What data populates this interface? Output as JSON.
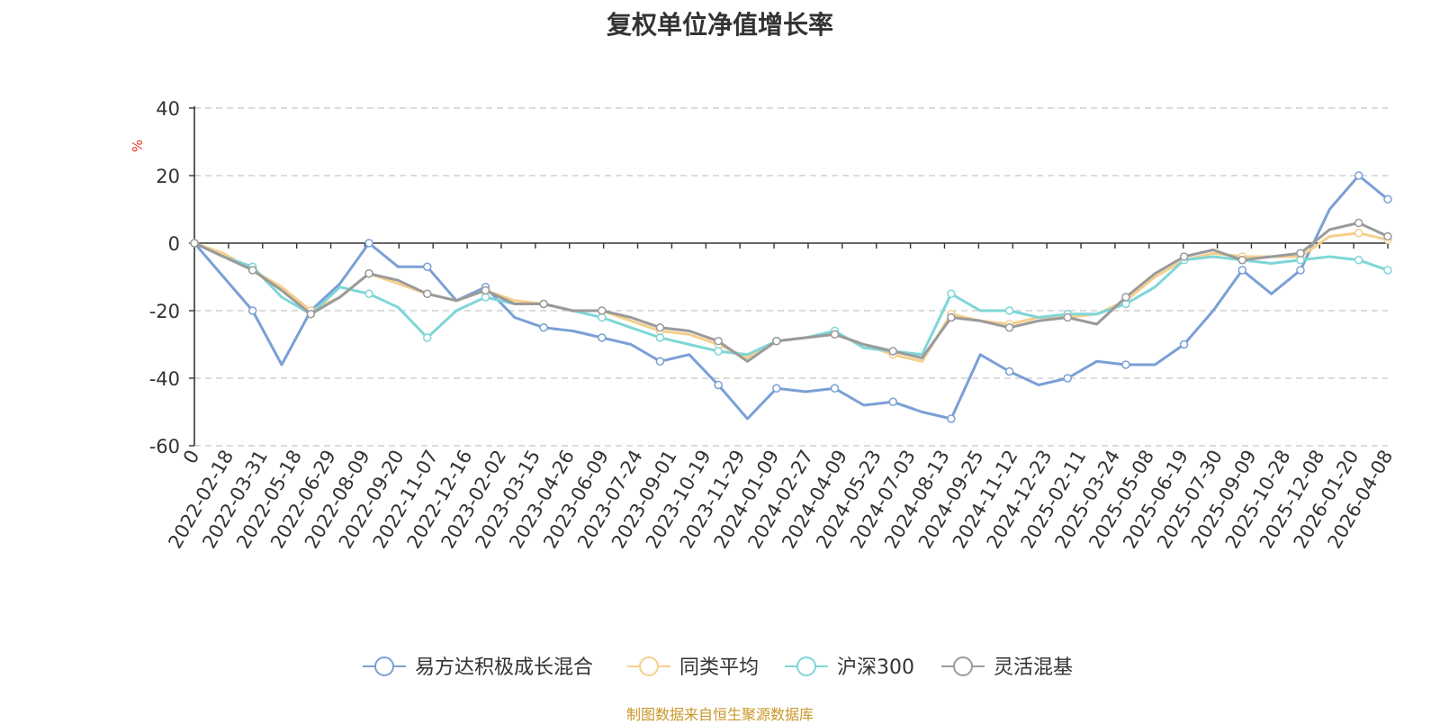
{
  "chart_data": {
    "type": "line",
    "title": "复权单位净值增长率",
    "ylabel": "%",
    "ylim": [
      -60,
      40
    ],
    "yticks": [
      40,
      20,
      0,
      -20,
      -40,
      -60
    ],
    "grid": true,
    "legend_position": "bottom",
    "x_tick_labels": [
      "0",
      "2022-02-18",
      "2022-03-31",
      "2022-05-18",
      "2022-06-29",
      "2022-08-09",
      "2022-09-20",
      "2022-11-07",
      "2022-12-16",
      "2023-02-02",
      "2023-03-15",
      "2023-04-26",
      "2023-06-09",
      "2023-07-24",
      "2023-09-01",
      "2023-10-19",
      "2023-11-29",
      "2024-01-09",
      "2024-02-27",
      "2024-04-09",
      "2024-05-23",
      "2024-07-03",
      "2024-08-13",
      "2024-09-25",
      "2024-11-12",
      "2024-12-23",
      "2025-02-11",
      "2025-03-24",
      "2025-05-08",
      "2025-06-19",
      "2025-07-30",
      "2025-09-09",
      "2025-10-28",
      "2025-12-08",
      "2026-01-20",
      "2026-04-08"
    ],
    "series": [
      {
        "name": "易方达积极成长混合",
        "color": "#7b9fd6",
        "values": [
          0,
          -10,
          -20,
          -36,
          -20,
          -12,
          0,
          -7,
          -7,
          -17,
          -13,
          -22,
          -25,
          -26,
          -28,
          -30,
          -35,
          -33,
          -42,
          -52,
          -43,
          -44,
          -43,
          -48,
          -47,
          -50,
          -52,
          -33,
          -38,
          -42,
          -40,
          -35,
          -36,
          -36,
          -30,
          -20,
          -8,
          -15,
          -8,
          10,
          20,
          13
        ]
      },
      {
        "name": "同类平均",
        "color": "#f5cf8c",
        "values": [
          0,
          -3,
          -8,
          -13,
          -20,
          -16,
          -9,
          -12,
          -15,
          -17,
          -14,
          -17,
          -18,
          -20,
          -20,
          -23,
          -26,
          -27,
          -30,
          -34,
          -29,
          -28,
          -27,
          -30,
          -33,
          -35,
          -21,
          -23,
          -24,
          -22,
          -22,
          -21,
          -17,
          -10,
          -5,
          -3,
          -4,
          -4,
          -4,
          2,
          3,
          1
        ]
      },
      {
        "name": "沪深300",
        "color": "#7fd6d8",
        "values": [
          0,
          -4,
          -7,
          -16,
          -21,
          -13,
          -15,
          -19,
          -28,
          -20,
          -16,
          -18,
          -18,
          -20,
          -22,
          -25,
          -28,
          -30,
          -32,
          -33,
          -29,
          -28,
          -26,
          -31,
          -32,
          -33,
          -15,
          -20,
          -20,
          -22,
          -21,
          -21,
          -18,
          -13,
          -5,
          -4,
          -5,
          -6,
          -5,
          -4,
          -5,
          -8
        ]
      },
      {
        "name": "灵活混基",
        "color": "#9a9a9a",
        "values": [
          0,
          -4,
          -8,
          -14,
          -21,
          -16,
          -9,
          -11,
          -15,
          -17,
          -14,
          -18,
          -18,
          -20,
          -20,
          -22,
          -25,
          -26,
          -29,
          -35,
          -29,
          -28,
          -27,
          -30,
          -32,
          -34,
          -22,
          -23,
          -25,
          -23,
          -22,
          -24,
          -16,
          -9,
          -4,
          -2,
          -5,
          -4,
          -3,
          4,
          6,
          2
        ]
      }
    ]
  },
  "source_text": "制图数据来自恒生聚源数据库"
}
